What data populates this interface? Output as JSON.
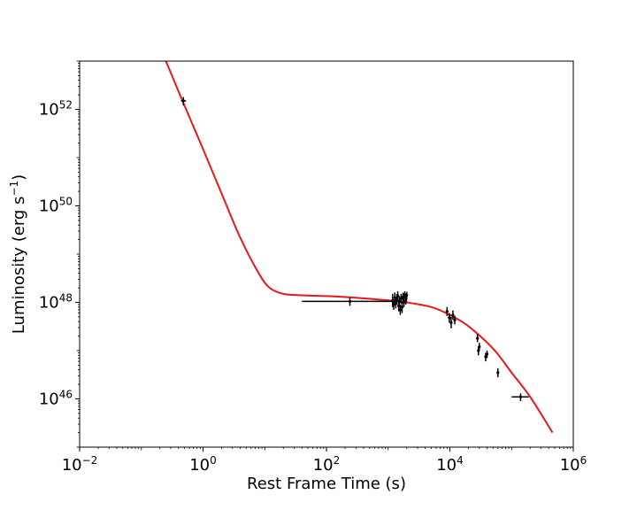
{
  "chart_data": {
    "type": "scatter",
    "xlabel": "Rest Frame Time (s)",
    "ylabel_text": "Luminosity (erg s",
    "ylabel_exponent": "−1",
    "ylabel_close": ")",
    "x_scale": "log",
    "y_scale": "log",
    "xlim": [
      0.01,
      1000000
    ],
    "ylim": [
      1e+45,
      1e+53
    ],
    "x_ticks": [
      {
        "value": 0.01,
        "base": "10",
        "exp": "−2"
      },
      {
        "value": 1,
        "base": "10",
        "exp": "0"
      },
      {
        "value": 100,
        "base": "10",
        "exp": "2"
      },
      {
        "value": 10000,
        "base": "10",
        "exp": "4"
      },
      {
        "value": 1000000,
        "base": "10",
        "exp": "6"
      }
    ],
    "y_ticks": [
      {
        "value": 1e+46,
        "base": "10",
        "exp": "46"
      },
      {
        "value": 1e+48,
        "base": "10",
        "exp": "48"
      },
      {
        "value": 1e+50,
        "base": "10",
        "exp": "50"
      },
      {
        "value": 1e+52,
        "base": "10",
        "exp": "52"
      }
    ],
    "grid": false,
    "legend": "none",
    "colors": {
      "model": "#e41a1c",
      "data": "#000000"
    },
    "series": [
      {
        "kind": "points",
        "points": [
          {
            "x": 0.48,
            "y": 1.5e+52,
            "xerr": [
              0.44,
              0.53
            ],
            "yerr": [
              1.2e+52,
              1.8e+52
            ]
          },
          {
            "x": 240,
            "y": 1.05e+48,
            "xerr": [
              40,
              1500
            ],
            "yerr": [
              8.5e+47,
              1.25e+48
            ]
          },
          {
            "x": 1180,
            "y": 1.1e+48,
            "xerr": null,
            "yerr": [
              8e+47,
              1.5e+48
            ]
          },
          {
            "x": 1230,
            "y": 9e+47,
            "xerr": null,
            "yerr": [
              7e+47,
              1.15e+48
            ]
          },
          {
            "x": 1280,
            "y": 1.25e+48,
            "xerr": null,
            "yerr": [
              1e+48,
              1.6e+48
            ]
          },
          {
            "x": 1330,
            "y": 9.5e+47,
            "xerr": null,
            "yerr": [
              7.5e+47,
              1.2e+48
            ]
          },
          {
            "x": 1380,
            "y": 1.15e+48,
            "xerr": null,
            "yerr": [
              9e+47,
              1.5e+48
            ]
          },
          {
            "x": 1430,
            "y": 1.35e+48,
            "xerr": null,
            "yerr": [
              1.1e+48,
              1.7e+48
            ]
          },
          {
            "x": 1480,
            "y": 8.5e+47,
            "xerr": null,
            "yerr": [
              6.5e+47,
              1.1e+48
            ]
          },
          {
            "x": 1520,
            "y": 1.05e+48,
            "xerr": null,
            "yerr": [
              8e+47,
              1.35e+48
            ]
          },
          {
            "x": 1570,
            "y": 7e+47,
            "xerr": null,
            "yerr": [
              5.5e+47,
              9e+47
            ]
          },
          {
            "x": 1620,
            "y": 1.2e+48,
            "xerr": null,
            "yerr": [
              9.5e+47,
              1.5e+48
            ]
          },
          {
            "x": 1680,
            "y": 8e+47,
            "xerr": null,
            "yerr": [
              6e+47,
              1.05e+48
            ]
          },
          {
            "x": 1740,
            "y": 1.3e+48,
            "xerr": null,
            "yerr": [
              1.05e+48,
              1.6e+48
            ]
          },
          {
            "x": 1800,
            "y": 1e+48,
            "xerr": null,
            "yerr": [
              8e+47,
              1.25e+48
            ]
          },
          {
            "x": 1860,
            "y": 1.45e+48,
            "xerr": null,
            "yerr": [
              1.2e+48,
              1.7e+48
            ]
          },
          {
            "x": 1930,
            "y": 1.1e+48,
            "xerr": null,
            "yerr": [
              9e+47,
              1.35e+48
            ]
          },
          {
            "x": 2000,
            "y": 1.4e+48,
            "xerr": null,
            "yerr": [
              1.15e+48,
              1.65e+48
            ]
          },
          {
            "x": 9000,
            "y": 6.5e+47,
            "xerr": null,
            "yerr": [
              5.2e+47,
              8e+47
            ]
          },
          {
            "x": 9800,
            "y": 4.8e+47,
            "xerr": null,
            "yerr": [
              3.8e+47,
              6e+47
            ]
          },
          {
            "x": 10500,
            "y": 3.8e+47,
            "xerr": null,
            "yerr": [
              2.9e+47,
              5e+47
            ]
          },
          {
            "x": 11200,
            "y": 5.5e+47,
            "xerr": null,
            "yerr": [
              4.4e+47,
              6.8e+47
            ]
          },
          {
            "x": 12000,
            "y": 4.3e+47,
            "xerr": null,
            "yerr": [
              3.5e+47,
              5.3e+47
            ]
          },
          {
            "x": 28000,
            "y": 1.8e+47,
            "xerr": null,
            "yerr": [
              1.5e+47,
              2.2e+47
            ]
          },
          {
            "x": 29000,
            "y": 1e+47,
            "xerr": null,
            "yerr": [
              8e+46,
              1.2e+47
            ]
          },
          {
            "x": 30000,
            "y": 1.2e+47,
            "xerr": null,
            "yerr": [
              1e+47,
              1.45e+47
            ]
          },
          {
            "x": 38000,
            "y": 7.5e+46,
            "xerr": null,
            "yerr": [
              6e+46,
              9e+46
            ]
          },
          {
            "x": 40000,
            "y": 8.5e+46,
            "xerr": null,
            "yerr": [
              7e+46,
              1e+47
            ]
          },
          {
            "x": 60000,
            "y": 3.5e+46,
            "xerr": null,
            "yerr": [
              2.8e+46,
              4.3e+46
            ]
          },
          {
            "x": 140000,
            "y": 1.1e+46,
            "xerr": [
              100000,
              190000
            ],
            "yerr": [
              9e+45,
              1.3e+46
            ]
          }
        ]
      },
      {
        "kind": "model",
        "points": [
          [
            0.25,
            1e+53
          ],
          [
            0.5,
            1.2e+52
          ],
          [
            1,
            1.5e+51
          ],
          [
            2,
            1.8e+50
          ],
          [
            4,
            2.2e+49
          ],
          [
            8,
            4e+48
          ],
          [
            12,
            2e+48
          ],
          [
            20,
            1.5e+48
          ],
          [
            40,
            1.4e+48
          ],
          [
            100,
            1.35e+48
          ],
          [
            300,
            1.25e+48
          ],
          [
            1000,
            1.1e+48
          ],
          [
            2000,
            1e+48
          ],
          [
            5000,
            8e+47
          ],
          [
            10000,
            5.5e+47
          ],
          [
            20000,
            3.2e+47
          ],
          [
            50000,
            1.1e+47
          ],
          [
            100000,
            3.5e+46
          ],
          [
            200000,
            1.1e+46
          ],
          [
            460000,
            2e+45
          ]
        ]
      }
    ]
  }
}
